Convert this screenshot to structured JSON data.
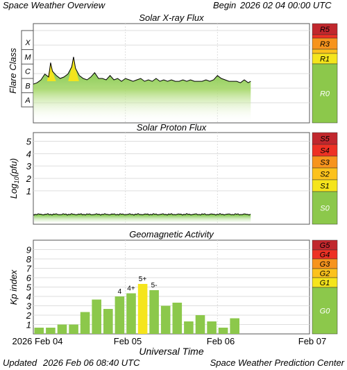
{
  "header": {
    "title": "Space Weather Overview",
    "begin_label": "Begin",
    "begin_date": "2026 02 04 00:00 UTC"
  },
  "footer": {
    "updated_label": "Updated",
    "updated_date": "2026 Feb 06 08:40 UTC",
    "center": "Space Weather Prediction Center",
    "xlabel": "Universal Time",
    "ticks": [
      "2026 Feb 04",
      "Feb 05",
      "Feb 06",
      "Feb 07"
    ]
  },
  "colors": {
    "plot_bg": "#ffffff",
    "grid": "#dddddd",
    "trace": "#000000",
    "fill_green": "#8ccc3c",
    "fill_yellow": "#f2e41e",
    "bar_green": "#8cc84b",
    "bar_yellow": "#f5e51c",
    "scale_r0": "#8cc84b",
    "scale_1": "#f5e51c",
    "scale_2": "#fcc21c",
    "scale_3": "#f7941d",
    "scale_4": "#ee3124",
    "scale_5": "#c1272d"
  },
  "chart_data": [
    {
      "type": "area",
      "title": "Solar X-ray Flux",
      "ylabel": "Flare Class",
      "y_scale": "log",
      "y_classes": [
        "A",
        "B",
        "C",
        "M",
        "X"
      ],
      "x_range": [
        "2026-02-04 00:00",
        "2026-02-07 00:00"
      ],
      "data_end": "2026-02-06 08:40",
      "scale_labels": [
        "R5",
        "R3",
        "R1",
        "R0"
      ],
      "x_hours": [
        0,
        1,
        2,
        3,
        4,
        4.5,
        5,
        6,
        7,
        8,
        9,
        10,
        10.5,
        11,
        12,
        13,
        14,
        15,
        16,
        17,
        18,
        19,
        20,
        21,
        22,
        23,
        24,
        25,
        26,
        27,
        28,
        29,
        30,
        31,
        32,
        33,
        34,
        35,
        36,
        37,
        38,
        39,
        40,
        41,
        42,
        43,
        44,
        45,
        46,
        47,
        48,
        49,
        50,
        51,
        52,
        53,
        54,
        55,
        56,
        56.67
      ],
      "class_level": [
        1.6,
        1.7,
        1.9,
        2.3,
        2.1,
        3.1,
        2.5,
        2.2,
        2.0,
        2.1,
        2.3,
        2.8,
        3.5,
        2.7,
        2.2,
        2.0,
        1.9,
        2.1,
        2.4,
        2.0,
        2.0,
        1.9,
        2.2,
        1.9,
        2.0,
        1.8,
        2.0,
        1.9,
        1.8,
        1.9,
        2.0,
        1.8,
        1.9,
        1.8,
        2.0,
        1.8,
        1.9,
        1.8,
        1.9,
        1.8,
        1.8,
        1.9,
        1.8,
        1.9,
        1.8,
        1.8,
        1.8,
        1.9,
        1.8,
        1.9,
        2.2,
        2.0,
        1.9,
        1.8,
        1.8,
        1.8,
        1.7,
        1.9,
        1.7,
        1.8
      ]
    },
    {
      "type": "area",
      "title": "Solar Proton Flux",
      "ylabel": "Log10(pfu)",
      "ylim": [
        -1.7,
        5.7
      ],
      "y_ticks": [
        1,
        2,
        3,
        4,
        5
      ],
      "data_end": "2026-02-06 08:40",
      "level_log10": -0.9,
      "scale_labels": [
        "S5",
        "S4",
        "S3",
        "S2",
        "S1",
        "S0"
      ]
    },
    {
      "type": "bar",
      "title": "Geomagnetic Activity",
      "ylabel": "Kp index",
      "ylim": [
        0,
        10
      ],
      "y_ticks": [
        1,
        2,
        3,
        4,
        5,
        6,
        7,
        8,
        9
      ],
      "bar_width_hours": 3,
      "values": [
        0.67,
        0.67,
        1.0,
        1.0,
        2.33,
        3.67,
        2.67,
        4.0,
        4.33,
        5.33,
        4.67,
        3.0,
        3.33,
        1.33,
        2.0,
        1.33,
        0.67,
        1.67
      ],
      "bar_labels": [
        "",
        "",
        "",
        "",
        "",
        "",
        "",
        "4",
        "4+",
        "5+",
        "5-",
        "",
        "",
        "",
        "",
        "",
        "",
        ""
      ],
      "scale_labels": [
        "G5",
        "G4",
        "G3",
        "G2",
        "G1",
        "G0"
      ]
    }
  ]
}
